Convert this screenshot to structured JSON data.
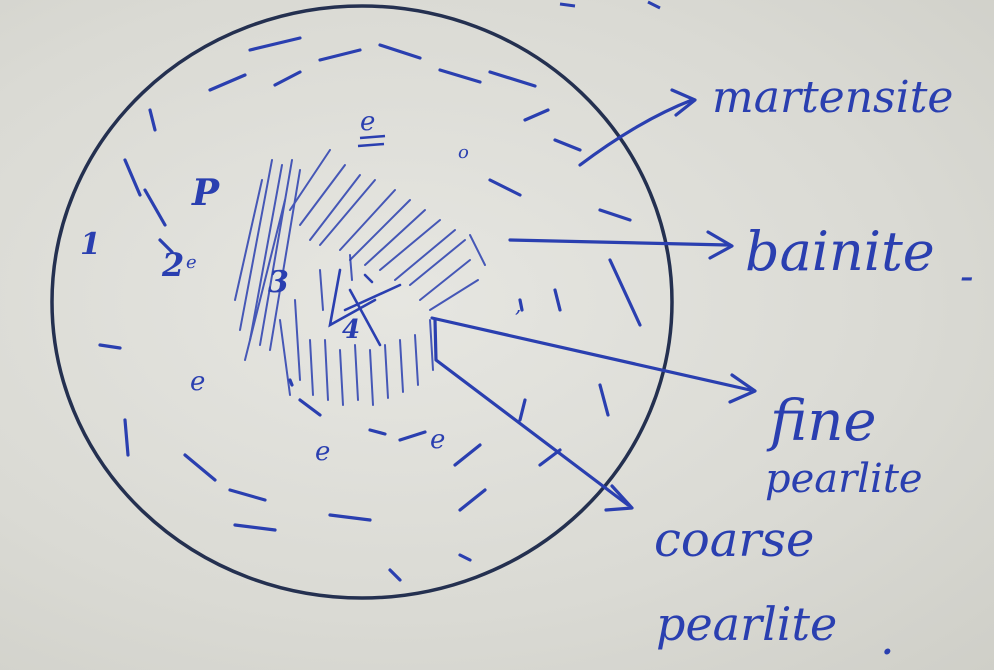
{
  "colors": {
    "ink": "#2a3fb0",
    "outline": "#243050",
    "board": "#dcdcd6"
  },
  "region_labels": {
    "zone1": "1",
    "zone2": "2",
    "zone3": "3",
    "zone4": "4",
    "p_mark": "P"
  },
  "callouts": {
    "martensite": "martensite",
    "bainite": "bainite",
    "bainite_suffix": "-",
    "fine_pearlite_line1": "fine",
    "fine_pearlite_line2": "pearlite",
    "coarse_pearlite_line1": "coarse",
    "coarse_pearlite_line2": "pearlite",
    "coarse_pearlite_suffix": "."
  }
}
